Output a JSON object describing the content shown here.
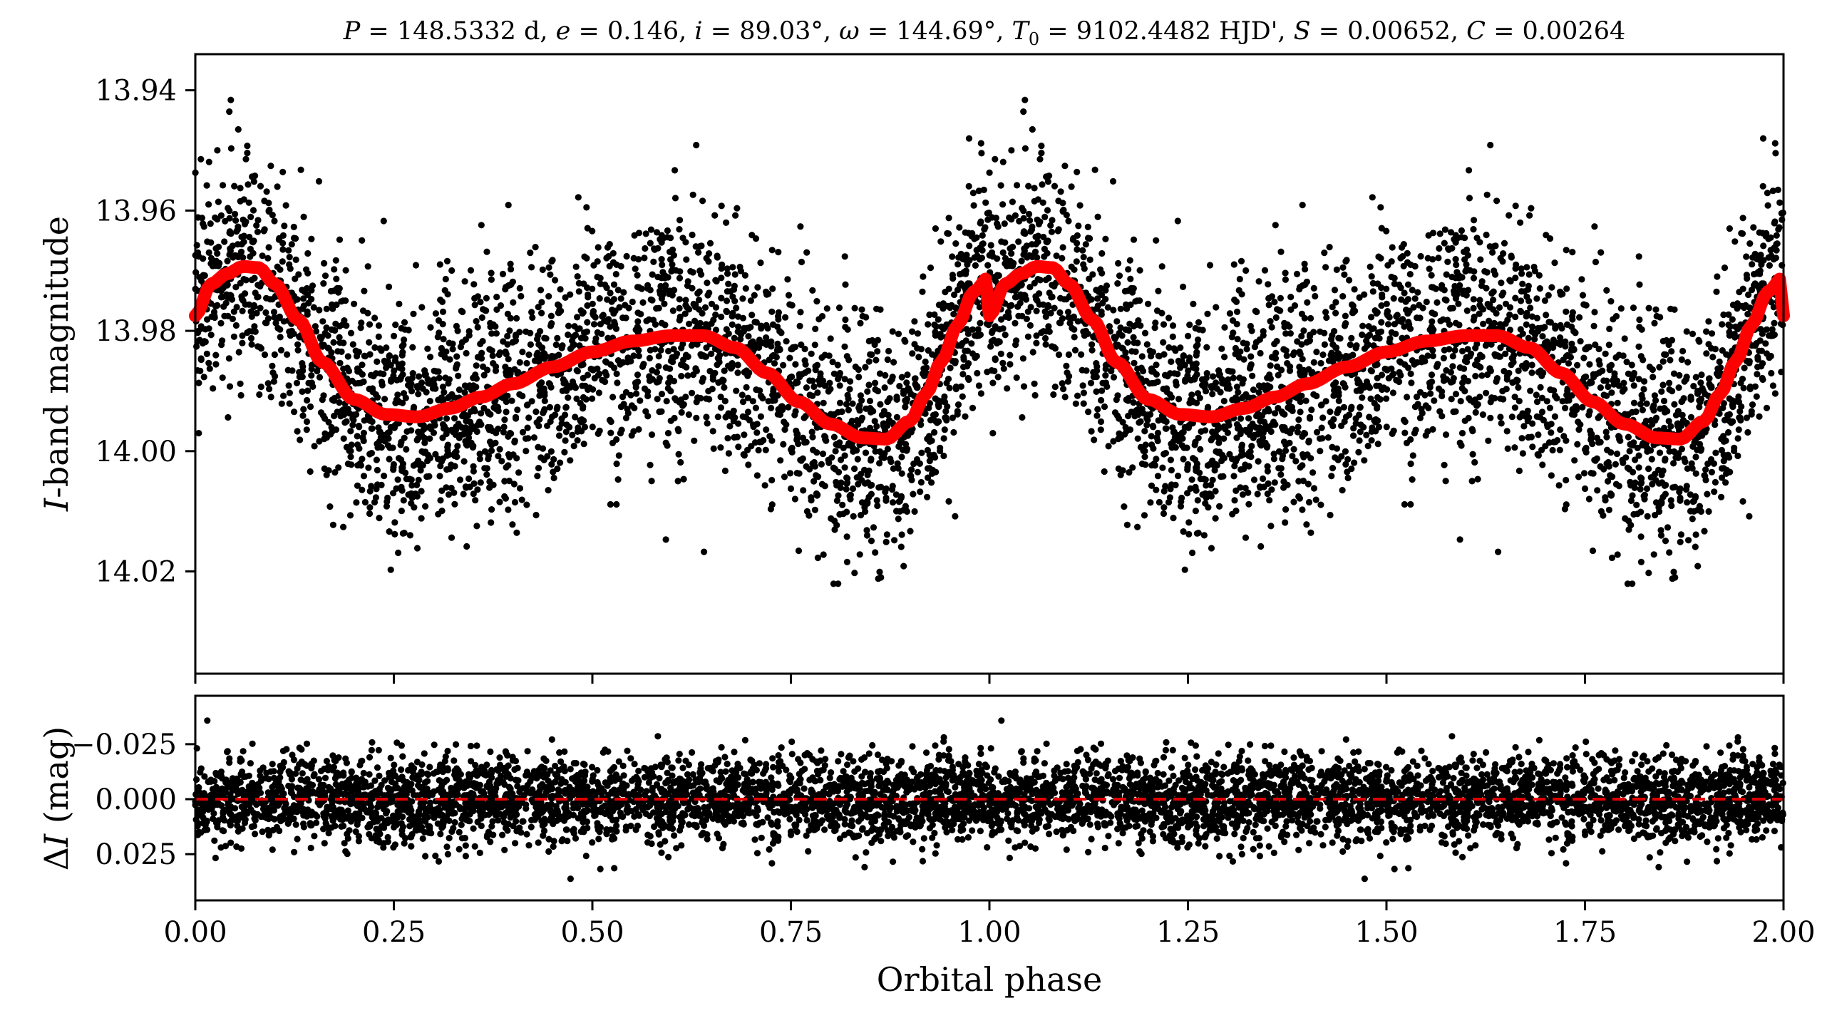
{
  "figure": {
    "title_parts": {
      "P_sym": "P",
      "P_val": " = 148.5332 d, ",
      "e_sym": "e",
      "e_val": " = 0.146, ",
      "i_sym": "i",
      "i_val": " = 89.03°, ",
      "w_sym": "ω",
      "w_val": " = 144.69°, ",
      "T_sym": "T",
      "T_sub": "0",
      "T_val": " = 9102.4482 HJD', ",
      "S_sym": "S",
      "S_val": " = 0.00652, ",
      "C_sym": "C",
      "C_val": " = 0.00264"
    },
    "xlabel": "Orbital phase"
  },
  "chart_data": [
    {
      "type": "scatter",
      "panel": "top",
      "ylabel_italic": "I",
      "ylabel_rest": "-band magnitude",
      "xlim": [
        0.0,
        2.0
      ],
      "ylim": [
        14.037,
        13.934
      ],
      "y_inverted": true,
      "x_ticks": [
        "0.00",
        "0.25",
        "0.50",
        "0.75",
        "1.00",
        "1.25",
        "1.50",
        "1.75",
        "2.00"
      ],
      "y_ticks": [
        "13.94",
        "13.96",
        "13.98",
        "14.00",
        "14.02"
      ],
      "point_color": "#000000",
      "model_color": "#ff0000",
      "n_points_per_cycle": 2900,
      "data_scatter_sigma": 0.0095,
      "model_curve": {
        "x": [
          0.0,
          0.02,
          0.04,
          0.06,
          0.08,
          0.1,
          0.13,
          0.16,
          0.2,
          0.24,
          0.28,
          0.32,
          0.36,
          0.4,
          0.45,
          0.5,
          0.55,
          0.6,
          0.64,
          0.68,
          0.72,
          0.76,
          0.8,
          0.84,
          0.87,
          0.9,
          0.92,
          0.94,
          0.96,
          0.98,
          1.0
        ],
        "y": [
          13.9775,
          13.9722,
          13.9705,
          13.9693,
          13.9695,
          13.9722,
          13.9782,
          13.9852,
          13.9914,
          13.9939,
          13.9943,
          13.9929,
          13.991,
          13.9888,
          13.986,
          13.9835,
          13.9817,
          13.9808,
          13.9808,
          13.9828,
          13.987,
          13.9918,
          13.9955,
          13.9978,
          13.998,
          13.995,
          13.9905,
          13.985,
          13.979,
          13.9735,
          13.971
        ]
      }
    },
    {
      "type": "scatter",
      "panel": "bottom",
      "ylabel_greek": "Δ",
      "ylabel_italic": "I",
      "ylabel_rest": " (mag)",
      "xlim": [
        0.0,
        2.0
      ],
      "ylim": [
        0.046,
        -0.047
      ],
      "y_inverted": true,
      "y_ticks": [
        "−0.025",
        "0.000",
        "0.025"
      ],
      "reference_line": 0.0,
      "reference_line_color": "#e00000",
      "residual_sigma": 0.0095
    }
  ]
}
